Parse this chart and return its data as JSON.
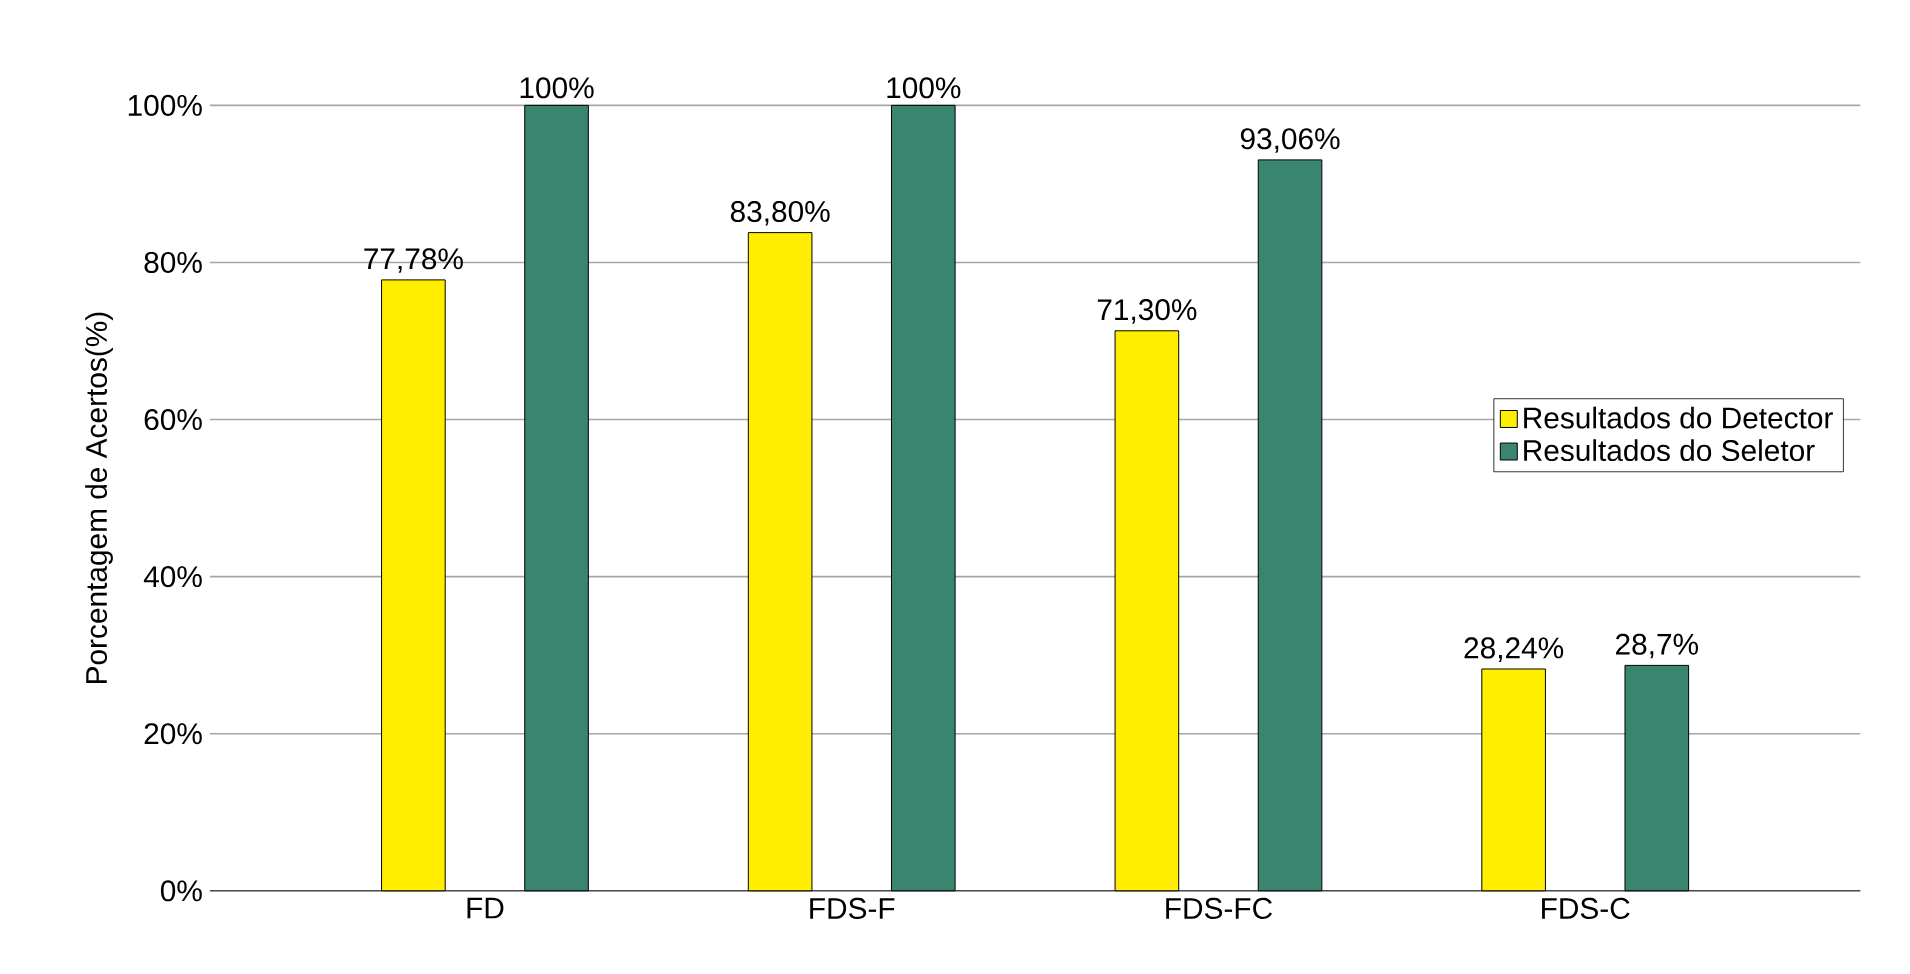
{
  "chart_data": {
    "type": "bar",
    "ylabel": "Porcentagem de Acertos(%)",
    "categories": [
      "FD",
      "FDS-F",
      "FDS-FC",
      "FDS-C"
    ],
    "series": [
      {
        "name": "Resultados do Detector",
        "color": "#ffee00",
        "values": [
          77.78,
          83.8,
          71.3,
          28.24
        ],
        "value_labels": [
          "77,78%",
          "83,80%",
          "71,30%",
          "28,24%"
        ]
      },
      {
        "name": "Resultados do Seletor",
        "color": "#3a8570",
        "values": [
          100,
          100,
          93.06,
          28.7
        ],
        "value_labels": [
          "100%",
          "100%",
          "93,06%",
          "28,7%"
        ]
      }
    ],
    "ylim": [
      0,
      100
    ],
    "yticks": [
      {
        "value": 0,
        "label": "0%"
      },
      {
        "value": 20,
        "label": "20%"
      },
      {
        "value": 40,
        "label": "40%"
      },
      {
        "value": 60,
        "label": "60%"
      },
      {
        "value": 80,
        "label": "80%"
      },
      {
        "value": 100,
        "label": "100%"
      }
    ],
    "grid": "y",
    "legend": "right"
  }
}
